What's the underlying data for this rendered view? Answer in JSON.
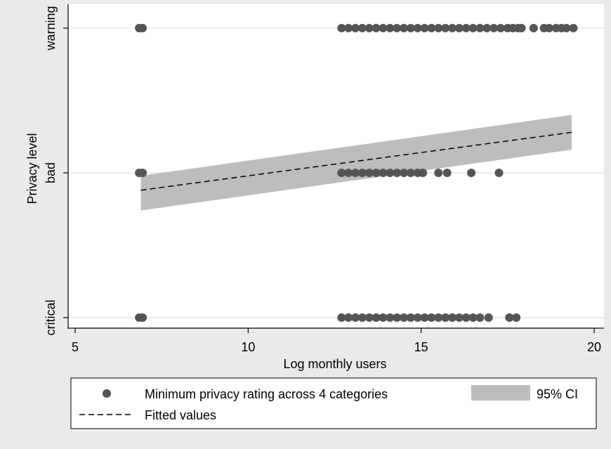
{
  "chart_data": {
    "type": "scatter",
    "xlabel": "Log monthly users",
    "ylabel": "Privacy level",
    "xlim": [
      5,
      20
    ],
    "ylim": [
      0,
      2
    ],
    "x_ticks": [
      5,
      10,
      15,
      20
    ],
    "y_ticks": [
      {
        "value": 0,
        "label": "critical"
      },
      {
        "value": 1,
        "label": "bad"
      },
      {
        "value": 2,
        "label": "warning"
      }
    ],
    "grid": "horizontal",
    "legend_position": "bottom",
    "series": [
      {
        "name": "Minimum privacy rating across 4 categories",
        "kind": "scatter",
        "color": "#555555",
        "points": [
          {
            "x": 6.85,
            "y": 2
          },
          {
            "x": 6.95,
            "y": 2
          },
          {
            "x": 12.7,
            "y": 2
          },
          {
            "x": 12.9,
            "y": 2
          },
          {
            "x": 13.1,
            "y": 2
          },
          {
            "x": 13.3,
            "y": 2
          },
          {
            "x": 13.5,
            "y": 2
          },
          {
            "x": 13.7,
            "y": 2
          },
          {
            "x": 13.9,
            "y": 2
          },
          {
            "x": 14.1,
            "y": 2
          },
          {
            "x": 14.3,
            "y": 2
          },
          {
            "x": 14.5,
            "y": 2
          },
          {
            "x": 14.7,
            "y": 2
          },
          {
            "x": 14.9,
            "y": 2
          },
          {
            "x": 15.1,
            "y": 2
          },
          {
            "x": 15.3,
            "y": 2
          },
          {
            "x": 15.5,
            "y": 2
          },
          {
            "x": 15.7,
            "y": 2
          },
          {
            "x": 15.9,
            "y": 2
          },
          {
            "x": 16.1,
            "y": 2
          },
          {
            "x": 16.3,
            "y": 2
          },
          {
            "x": 16.5,
            "y": 2
          },
          {
            "x": 16.7,
            "y": 2
          },
          {
            "x": 16.9,
            "y": 2
          },
          {
            "x": 17.1,
            "y": 2
          },
          {
            "x": 17.3,
            "y": 2
          },
          {
            "x": 17.5,
            "y": 2
          },
          {
            "x": 17.65,
            "y": 2
          },
          {
            "x": 17.8,
            "y": 2
          },
          {
            "x": 17.9,
            "y": 2
          },
          {
            "x": 18.25,
            "y": 2
          },
          {
            "x": 18.55,
            "y": 2
          },
          {
            "x": 18.7,
            "y": 2
          },
          {
            "x": 18.9,
            "y": 2
          },
          {
            "x": 19.05,
            "y": 2
          },
          {
            "x": 19.2,
            "y": 2
          },
          {
            "x": 19.4,
            "y": 2
          },
          {
            "x": 6.85,
            "y": 1
          },
          {
            "x": 6.95,
            "y": 1
          },
          {
            "x": 12.7,
            "y": 1
          },
          {
            "x": 12.9,
            "y": 1
          },
          {
            "x": 13.1,
            "y": 1
          },
          {
            "x": 13.3,
            "y": 1
          },
          {
            "x": 13.5,
            "y": 1
          },
          {
            "x": 13.7,
            "y": 1
          },
          {
            "x": 13.9,
            "y": 1
          },
          {
            "x": 14.1,
            "y": 1
          },
          {
            "x": 14.3,
            "y": 1
          },
          {
            "x": 14.5,
            "y": 1
          },
          {
            "x": 14.7,
            "y": 1
          },
          {
            "x": 14.9,
            "y": 1
          },
          {
            "x": 15.05,
            "y": 1
          },
          {
            "x": 15.5,
            "y": 1
          },
          {
            "x": 15.75,
            "y": 1
          },
          {
            "x": 16.45,
            "y": 1
          },
          {
            "x": 17.25,
            "y": 1
          },
          {
            "x": 6.85,
            "y": 0
          },
          {
            "x": 6.95,
            "y": 0
          },
          {
            "x": 12.7,
            "y": 0
          },
          {
            "x": 12.9,
            "y": 0
          },
          {
            "x": 13.1,
            "y": 0
          },
          {
            "x": 13.3,
            "y": 0
          },
          {
            "x": 13.5,
            "y": 0
          },
          {
            "x": 13.7,
            "y": 0
          },
          {
            "x": 13.9,
            "y": 0
          },
          {
            "x": 14.1,
            "y": 0
          },
          {
            "x": 14.3,
            "y": 0
          },
          {
            "x": 14.5,
            "y": 0
          },
          {
            "x": 14.7,
            "y": 0
          },
          {
            "x": 14.9,
            "y": 0
          },
          {
            "x": 15.1,
            "y": 0
          },
          {
            "x": 15.3,
            "y": 0
          },
          {
            "x": 15.5,
            "y": 0
          },
          {
            "x": 15.7,
            "y": 0
          },
          {
            "x": 15.9,
            "y": 0
          },
          {
            "x": 16.1,
            "y": 0
          },
          {
            "x": 16.3,
            "y": 0
          },
          {
            "x": 16.5,
            "y": 0
          },
          {
            "x": 16.7,
            "y": 0
          },
          {
            "x": 16.95,
            "y": 0
          },
          {
            "x": 17.55,
            "y": 0
          },
          {
            "x": 17.75,
            "y": 0
          }
        ]
      },
      {
        "name": "95% CI",
        "kind": "band",
        "color": "#bdbdbd",
        "x": [
          6.9,
          19.35
        ],
        "lower": [
          0.74,
          1.16
        ],
        "upper": [
          0.98,
          1.4
        ]
      },
      {
        "name": "Fitted values",
        "kind": "line",
        "dash": "dashed",
        "color": "#000000",
        "x": [
          6.9,
          19.35
        ],
        "y": [
          0.88,
          1.28
        ]
      }
    ],
    "legend": [
      {
        "label": "Minimum privacy rating across 4 categories",
        "symbol": "dot"
      },
      {
        "label": "95% CI",
        "symbol": "band"
      },
      {
        "label": "Fitted values",
        "symbol": "dash"
      }
    ]
  }
}
